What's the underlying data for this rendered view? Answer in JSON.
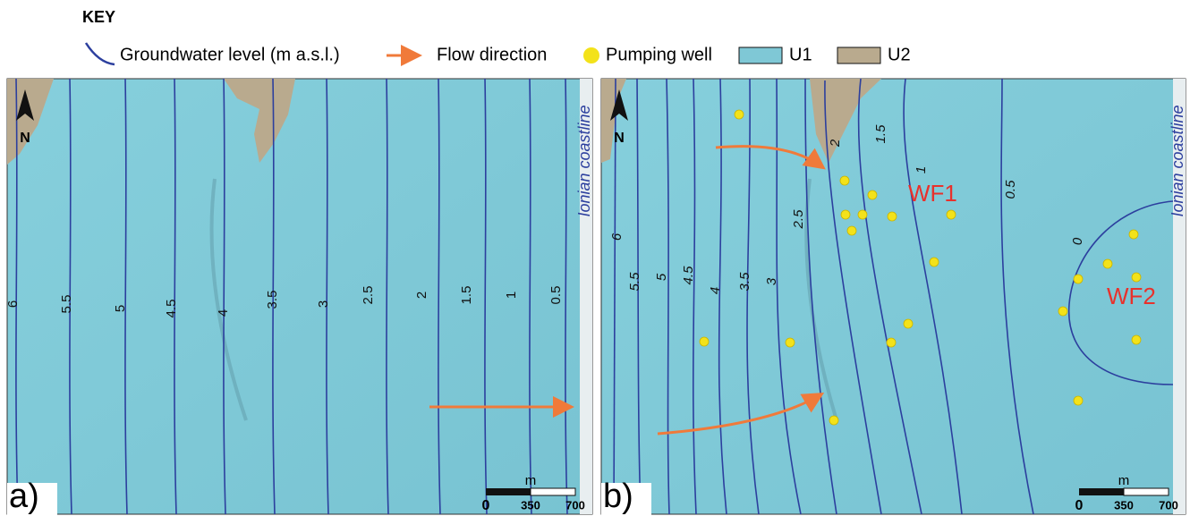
{
  "key": {
    "title": "KEY",
    "items": [
      "Groundwater level (m a.s.l.)",
      "Flow direction",
      "Pumping well",
      "U1",
      "U2"
    ]
  },
  "panels": [
    {
      "label": "a)",
      "north": "N",
      "coastline": "Ionian coastline",
      "scale": {
        "unit": "m",
        "ticks": [
          "0",
          "350",
          "700"
        ]
      },
      "contours": [
        "6",
        "5.5",
        "5",
        "4.5",
        "4",
        "3.5",
        "3",
        "2.5",
        "2",
        "1.5",
        "1",
        "0.5"
      ]
    },
    {
      "label": "b)",
      "north": "N",
      "coastline": "Ionian coastline",
      "scale": {
        "unit": "m",
        "ticks": [
          "0",
          "350",
          "700"
        ]
      },
      "contours": [
        "6",
        "5.5",
        "5",
        "4.5",
        "4",
        "3.5",
        "3",
        "2.5",
        "2",
        "1.5",
        "1",
        "0.5",
        "0"
      ],
      "wellfields": [
        "WF1",
        "WF2"
      ]
    }
  ]
}
